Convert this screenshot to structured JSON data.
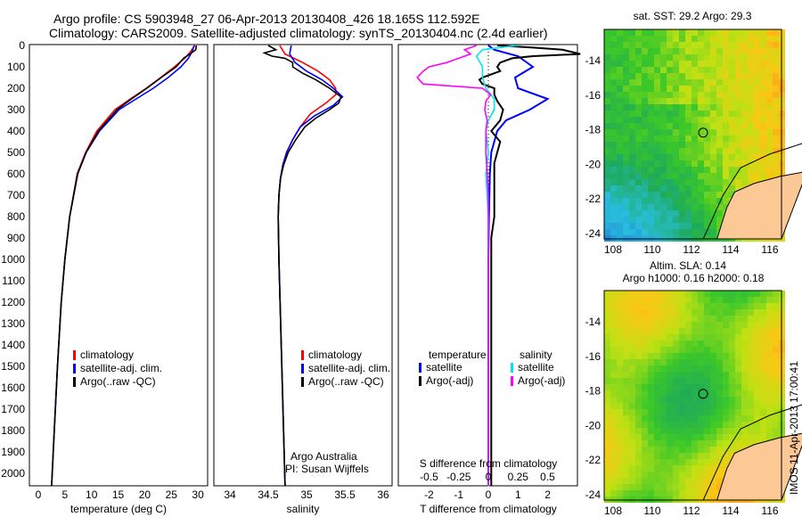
{
  "header": {
    "line1": "Argo profile: CS 5903948_27 06-Apr-2013 20130408_426 18.165S 112.592E",
    "line2": "Climatology: CARS2009. Satellite-adjusted climatology: synTS_20130404.nc (2.4d earlier)"
  },
  "colors": {
    "clim": "#ff0000",
    "sat": "#0000ff",
    "argo": "#000000",
    "sal_sat": "#00e5ee",
    "sal_argo": "#ff00ff",
    "land": "#fcc896"
  },
  "chart_data": [
    {
      "type": "line",
      "id": "temperature",
      "xlabel": "temperature (deg C)",
      "xlim": [
        -1,
        31
      ],
      "ylim": [
        2060,
        0
      ],
      "xticks": [
        0,
        5,
        10,
        15,
        20,
        25,
        30
      ],
      "yticks": [
        0,
        100,
        200,
        300,
        400,
        500,
        600,
        700,
        800,
        900,
        1000,
        1100,
        1200,
        1300,
        1400,
        1500,
        1600,
        1700,
        1800,
        1900,
        2000
      ],
      "legend": [
        "climatology",
        "satellite-adj. clim.",
        "Argo(..raw -QC)"
      ],
      "series": [
        {
          "name": "climatology",
          "color": "clim",
          "depth": [
            0,
            30,
            60,
            100,
            150,
            200,
            250,
            300,
            400,
            500,
            600,
            800,
            1000,
            1200,
            1500,
            1800,
            2060
          ],
          "values": [
            29.4,
            28.6,
            27.5,
            25.6,
            23.0,
            20.3,
            17.3,
            14.4,
            11.0,
            8.9,
            7.3,
            5.9,
            5.0,
            4.3,
            3.6,
            3.0,
            2.5
          ]
        },
        {
          "name": "satellite-adj. clim.",
          "color": "sat",
          "depth": [
            0,
            30,
            60,
            100,
            150,
            200,
            250,
            300,
            400,
            500,
            600,
            800,
            1000,
            1200,
            1500,
            1800,
            2060
          ],
          "values": [
            29.3,
            28.9,
            28.2,
            26.8,
            24.4,
            21.6,
            18.4,
            15.2,
            11.5,
            9.0,
            7.4,
            5.9,
            5.0,
            4.3,
            3.6,
            3.0,
            2.5
          ]
        },
        {
          "name": "Argo(..raw -QC)",
          "color": "argo",
          "depth": [
            0,
            20,
            40,
            60,
            100,
            150,
            200,
            250,
            300,
            400,
            500,
            600,
            800,
            1000,
            1200,
            1500,
            1800,
            2060
          ],
          "values": [
            29.7,
            29.6,
            28.5,
            27.3,
            25.9,
            23.1,
            20.4,
            17.5,
            14.8,
            11.3,
            9.0,
            7.4,
            5.9,
            5.0,
            4.3,
            3.6,
            3.0,
            2.5
          ]
        }
      ]
    },
    {
      "type": "line",
      "id": "salinity",
      "xlabel": "salinity",
      "xlim": [
        33.8,
        36.1
      ],
      "ylim": [
        2060,
        0
      ],
      "xticks": [
        34,
        34.5,
        35,
        35.5,
        36
      ],
      "legend": [
        "climatology",
        "satellite-adj. clim.",
        "Argo(..raw -QC)"
      ],
      "annotation": [
        "Argo Australia",
        "PI: Susan Wijffels"
      ],
      "series": [
        {
          "name": "climatology",
          "color": "clim",
          "depth": [
            0,
            40,
            80,
            120,
            160,
            200,
            230,
            270,
            320,
            380,
            440,
            500,
            560,
            620,
            700,
            800,
            1000,
            1400,
            2060
          ],
          "values": [
            34.65,
            34.72,
            34.95,
            35.15,
            35.3,
            35.38,
            35.38,
            35.25,
            35.05,
            34.92,
            34.82,
            34.74,
            34.69,
            34.66,
            34.64,
            34.63,
            34.64,
            34.67,
            34.72
          ]
        },
        {
          "name": "satellite-adj. clim.",
          "color": "sat",
          "depth": [
            0,
            40,
            80,
            120,
            160,
            200,
            240,
            280,
            330,
            380,
            440,
            500,
            560,
            620,
            700,
            800,
            1000,
            1400,
            2060
          ],
          "values": [
            34.8,
            34.78,
            34.85,
            35.0,
            35.2,
            35.35,
            35.47,
            35.35,
            35.1,
            34.92,
            34.82,
            34.74,
            34.69,
            34.66,
            34.64,
            34.63,
            34.64,
            34.67,
            34.72
          ]
        },
        {
          "name": "Argo(..raw -QC)",
          "color": "argo",
          "depth": [
            0,
            20,
            35,
            50,
            60,
            80,
            100,
            130,
            160,
            200,
            240,
            270,
            300,
            340,
            380,
            440,
            500,
            560,
            620,
            700,
            800,
            1000,
            1400,
            2060
          ],
          "values": [
            34.5,
            34.6,
            34.45,
            34.55,
            34.72,
            34.82,
            34.82,
            34.95,
            35.12,
            35.3,
            35.45,
            35.42,
            35.3,
            35.12,
            34.98,
            34.86,
            34.76,
            34.7,
            34.66,
            34.64,
            34.63,
            34.64,
            34.67,
            34.72
          ]
        }
      ]
    },
    {
      "type": "line",
      "id": "differences",
      "xlabel": "T difference from climatology",
      "xlim": [
        -2.6,
        3.0
      ],
      "xticks": [
        -2,
        -1,
        0,
        1,
        2
      ],
      "x2label": "S difference from climatology",
      "x2ticks": [
        -0.5,
        -0.25,
        0,
        0.25,
        0.5
      ],
      "legend_temperature": {
        "title": "temperature",
        "items": [
          "satellite",
          "Argo(-adj)"
        ]
      },
      "legend_salinity": {
        "title": "salinity",
        "items": [
          "satellite",
          "Argo(-adj)"
        ]
      },
      "series": [
        {
          "name": "T satellite",
          "axis": "T",
          "color": "sat",
          "depth": [
            0,
            20,
            50,
            100,
            150,
            200,
            250,
            300,
            350,
            400,
            500,
            600,
            800,
            1000,
            1500,
            2060
          ],
          "values": [
            0,
            0.2,
            1.0,
            1.5,
            0.9,
            1.0,
            2.0,
            1.4,
            0.6,
            0.3,
            0.1,
            0.05,
            0.02,
            0,
            0,
            0
          ]
        },
        {
          "name": "T Argo(-adj)",
          "axis": "T",
          "color": "argo",
          "depth": [
            0,
            10,
            20,
            40,
            50,
            60,
            80,
            100,
            120,
            150,
            160,
            180,
            200,
            230,
            260,
            300,
            350,
            400,
            450,
            500,
            550,
            600,
            700,
            800,
            900,
            1000,
            1500,
            2060
          ],
          "values": [
            0.3,
            1.5,
            2.5,
            3.1,
            1.5,
            0.8,
            0.4,
            0.3,
            0.4,
            -0.2,
            -0.3,
            -0.2,
            0.2,
            0.2,
            0.3,
            0.5,
            0.4,
            0.1,
            0.4,
            0.3,
            0.2,
            0.2,
            0.2,
            0.2,
            0.1,
            0.1,
            0.1,
            0.1
          ]
        },
        {
          "name": "S satellite",
          "axis": "S",
          "color": "sal_sat",
          "depth": [
            0,
            20,
            50,
            100,
            150,
            200,
            250,
            300,
            350,
            400,
            500,
            600,
            800,
            1000,
            2060
          ],
          "values": [
            0.25,
            -0.05,
            -0.1,
            -0.05,
            -0.05,
            -0.02,
            0.05,
            0.05,
            0,
            -0.02,
            0,
            -0.02,
            0,
            0,
            0
          ]
        },
        {
          "name": "S Argo(-adj)",
          "axis": "S",
          "color": "sal_argo",
          "depth": [
            0,
            20,
            40,
            60,
            80,
            100,
            120,
            150,
            180,
            200,
            230,
            260,
            300,
            350,
            400,
            500,
            600,
            700,
            1000,
            2060
          ],
          "values": [
            -0.1,
            -0.2,
            -0.15,
            -0.25,
            -0.35,
            -0.5,
            -0.55,
            -0.6,
            -0.55,
            -0.05,
            0.02,
            -0.02,
            -0.03,
            -0.01,
            -0.02,
            -0.02,
            -0.01,
            0,
            0,
            0
          ]
        }
      ]
    },
    {
      "type": "heatmap",
      "id": "sst-map",
      "title": "sat. SST: 29.2 Argo: 29.3",
      "xticks": [
        108,
        110,
        112,
        114,
        116
      ],
      "yticks": [
        -14,
        -16,
        -18,
        -20,
        -22,
        -24
      ],
      "xlim": [
        107.2,
        117.9
      ],
      "ylim": [
        -24.1,
        -12.2
      ],
      "argo_position": [
        112.592,
        -18.165
      ]
    },
    {
      "type": "heatmap",
      "id": "sla-map",
      "title1": "Altim. SLA: 0.14",
      "title2": "Argo h1000: 0.16 h2000: 0.18",
      "xticks": [
        108,
        110,
        112,
        114,
        116
      ],
      "yticks": [
        -14,
        -16,
        -18,
        -20,
        -22,
        -24
      ],
      "xlim": [
        107.2,
        117.9
      ],
      "ylim": [
        -24.1,
        -12.2
      ],
      "argo_position": [
        112.592,
        -18.165
      ]
    }
  ],
  "footer": {
    "imos_stamp": "IMOS 11-Apr-2013 17:00:41"
  }
}
